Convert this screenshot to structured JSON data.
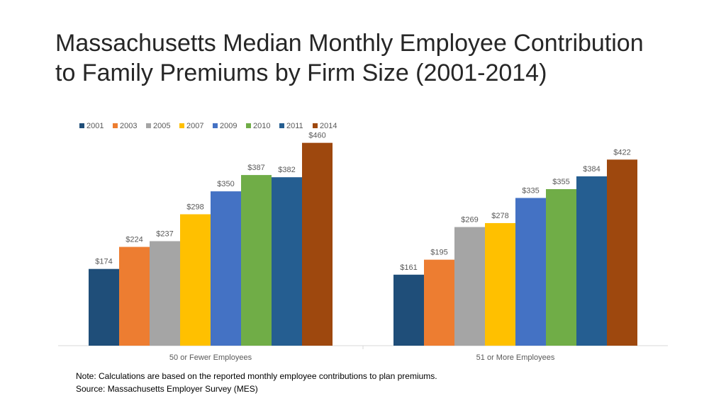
{
  "slide": {
    "title_line1": "Massachusetts Median Monthly Employee Contribution",
    "title_line2": "to Family Premiums by Firm Size (2001-2014)",
    "note": "Note: Calculations are based on the reported monthly employee contributions to plan premiums.",
    "source": "Source: Massachusetts Employer Survey (MES)"
  },
  "chart_data": {
    "type": "bar",
    "title": "",
    "xlabel": "",
    "ylabel": "",
    "categories": [
      "50 or Fewer Employees",
      "51 or More Employees"
    ],
    "series": [
      {
        "name": "2001",
        "color": "#1f4e79",
        "values": [
          174,
          161
        ],
        "labels": [
          "$174",
          "$161"
        ]
      },
      {
        "name": "2003",
        "color": "#ed7d31",
        "values": [
          224,
          195
        ],
        "labels": [
          "$224",
          "$195"
        ]
      },
      {
        "name": "2005",
        "color": "#a5a5a5",
        "values": [
          237,
          269
        ],
        "labels": [
          "$237",
          "$269"
        ]
      },
      {
        "name": "2007",
        "color": "#ffc000",
        "values": [
          298,
          278
        ],
        "labels": [
          "$298",
          "$278"
        ]
      },
      {
        "name": "2009",
        "color": "#4472c4",
        "values": [
          350,
          335
        ],
        "labels": [
          "$350",
          "$335"
        ]
      },
      {
        "name": "2010",
        "color": "#70ad47",
        "values": [
          387,
          355
        ],
        "labels": [
          "$387",
          "$355"
        ]
      },
      {
        "name": "2011",
        "color": "#255e91",
        "values": [
          382,
          384
        ],
        "labels": [
          "$382",
          "$384"
        ]
      },
      {
        "name": "2014",
        "color": "#9e480e",
        "values": [
          460,
          422
        ],
        "labels": [
          "$460",
          "$422"
        ]
      }
    ],
    "ylim": [
      0,
      500
    ],
    "grid": false,
    "legend_position": "top-left"
  }
}
